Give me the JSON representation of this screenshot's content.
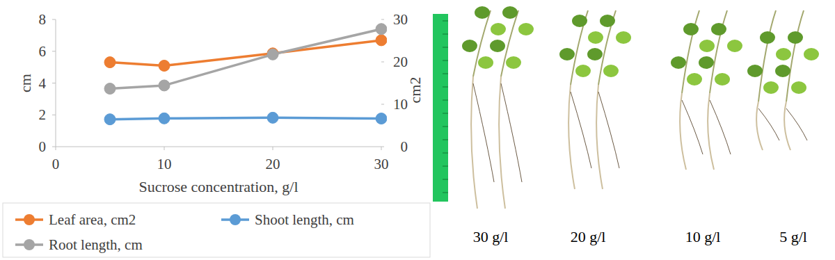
{
  "chart_data": {
    "type": "line",
    "x_label": "Sucrose concentration, g/l",
    "y_label": "cm",
    "y2_label": "cm2",
    "x": [
      5,
      10,
      20,
      30
    ],
    "xlim": [
      0,
      30
    ],
    "xticks": [
      0,
      10,
      20,
      30
    ],
    "ylim": [
      0,
      8
    ],
    "yticks": [
      0,
      2,
      4,
      6,
      8
    ],
    "y2lim": [
      0,
      30
    ],
    "y2ticks": [
      0,
      10,
      20,
      30
    ],
    "grid": false,
    "legend": "bottom",
    "marker": "circle",
    "series": [
      {
        "name": "Leaf area, cm2",
        "color": "#ed7d31",
        "axis": "y2",
        "values": [
          19.9,
          19.1,
          22.0,
          25.1
        ]
      },
      {
        "name": "Shoot length, cm",
        "color": "#5b9bd5",
        "values": [
          1.72,
          1.78,
          1.82,
          1.77
        ]
      },
      {
        "name": "Root length, cm",
        "color": "#a5a5a5",
        "values": [
          3.65,
          3.85,
          5.8,
          7.4
        ]
      }
    ]
  },
  "photo": {
    "labels": [
      "30 g/l",
      "20 g/l",
      "10 g/l",
      "5 g/l"
    ]
  }
}
